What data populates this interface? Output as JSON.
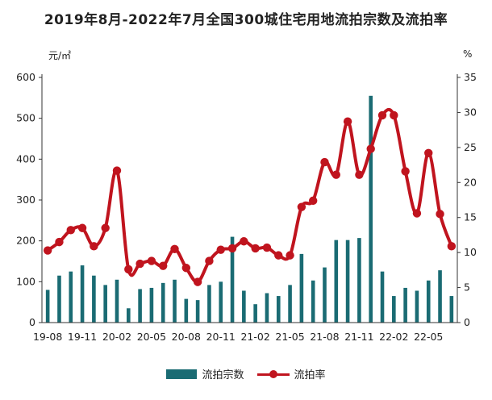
{
  "chart_data": {
    "type": "bar+line",
    "title": "2019年8月-2022年7月全国300城住宅用地流拍宗数及流拍率",
    "left_axis_unit": "元/㎡",
    "right_axis_unit": "%",
    "y_left_lim": [
      0,
      600
    ],
    "y_left_ticks": [
      "0",
      "100",
      "200",
      "300",
      "400",
      "500",
      "600"
    ],
    "y_right_lim": [
      0,
      35
    ],
    "y_right_ticks": [
      "0",
      "5",
      "10",
      "15",
      "20",
      "25",
      "30",
      "35"
    ],
    "x_tick_labels": [
      "19-08",
      "19-11",
      "20-02",
      "20-05",
      "20-08",
      "20-11",
      "21-02",
      "21-05",
      "21-08",
      "21-11",
      "22-02",
      "22-05"
    ],
    "categories": [
      "19-08",
      "19-09",
      "19-10",
      "19-11",
      "19-12",
      "20-01",
      "20-02",
      "20-03",
      "20-04",
      "20-05",
      "20-06",
      "20-07",
      "20-08",
      "20-09",
      "20-10",
      "20-11",
      "20-12",
      "21-01",
      "21-02",
      "21-03",
      "21-04",
      "21-05",
      "21-06",
      "21-07",
      "21-08",
      "21-09",
      "21-10",
      "21-11",
      "21-12",
      "22-01",
      "22-02",
      "22-03",
      "22-04",
      "22-05",
      "22-06",
      "22-07"
    ],
    "series": [
      {
        "name": "流拍宗数",
        "type": "bar",
        "axis": "left",
        "color": "#1a6b73",
        "values": [
          80,
          115,
          125,
          140,
          115,
          92,
          105,
          35,
          82,
          85,
          97,
          105,
          58,
          55,
          92,
          100,
          210,
          78,
          45,
          72,
          65,
          92,
          168,
          103,
          135,
          202,
          202,
          207,
          555,
          125,
          65,
          85,
          78,
          103,
          128,
          65
        ]
      },
      {
        "name": "流拍率",
        "type": "line",
        "axis": "right",
        "color": "#c0141e",
        "values": [
          10.3,
          11.5,
          13.2,
          13.5,
          10.9,
          13.5,
          21.7,
          7.6,
          8.4,
          8.8,
          8.1,
          10.5,
          7.8,
          5.8,
          8.8,
          10.4,
          10.6,
          11.6,
          10.6,
          10.7,
          9.6,
          9.6,
          16.5,
          17.4,
          22.9,
          21.1,
          28.7,
          21.1,
          24.8,
          29.6,
          29.6,
          21.6,
          15.6,
          24.2,
          15.5,
          10.9
        ]
      }
    ],
    "legend_position": "bottom",
    "grid": false
  }
}
